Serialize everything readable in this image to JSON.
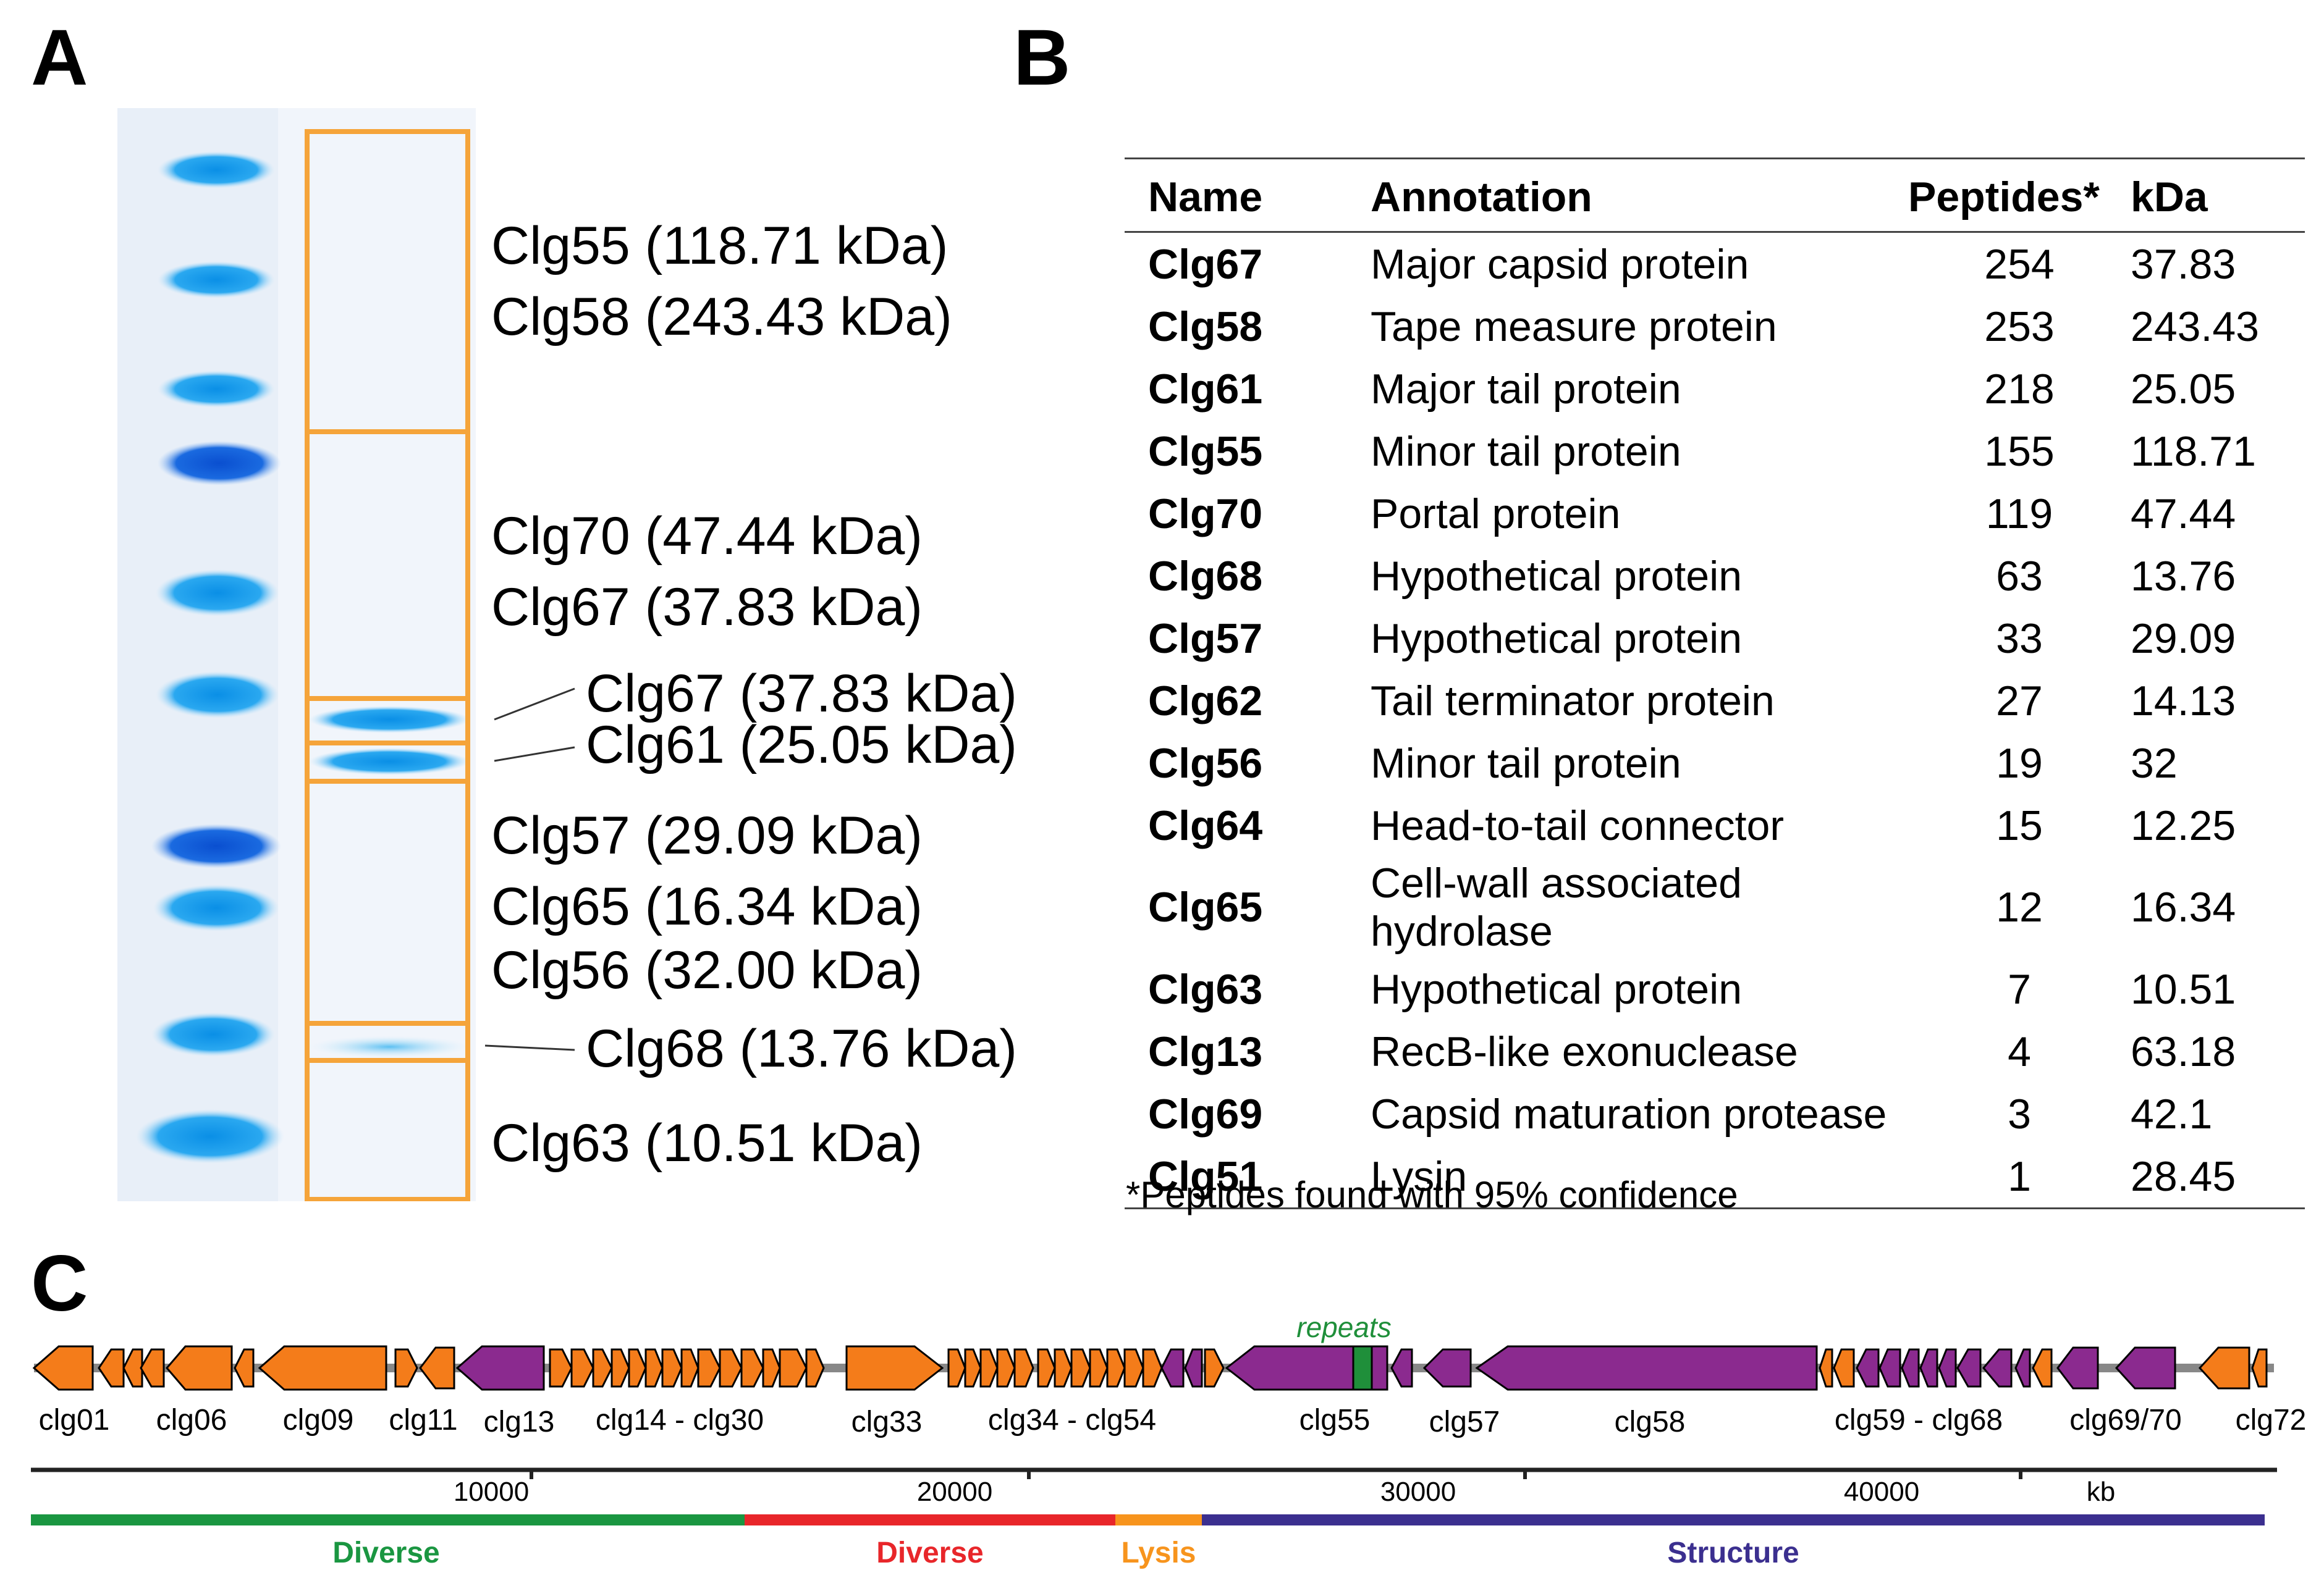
{
  "panels": {
    "a": "A",
    "b": "B",
    "c": "C"
  },
  "gel_labels": [
    "Clg55 (118.71 kDa)",
    "Clg58 (243.43 kDa)",
    "Clg70 (47.44 kDa)",
    "Clg67 (37.83 kDa)",
    "Clg67 (37.83 kDa)",
    "Clg61 (25.05 kDa)",
    "Clg57 (29.09 kDa)",
    "Clg65 (16.34 kDa)",
    "Clg56 (32.00 kDa)",
    "Clg68 (13.76 kDa)",
    "Clg63 (10.51 kDa)"
  ],
  "table": {
    "headers": [
      "Name",
      "Annotation",
      "Peptides*",
      "kDa"
    ],
    "rows": [
      [
        "Clg67",
        "Major capsid protein",
        "254",
        "37.83"
      ],
      [
        "Clg58",
        "Tape measure protein",
        "253",
        "243.43"
      ],
      [
        "Clg61",
        "Major tail protein",
        "218",
        "25.05"
      ],
      [
        "Clg55",
        "Minor tail protein",
        "155",
        "118.71"
      ],
      [
        "Clg70",
        "Portal protein",
        "119",
        "47.44"
      ],
      [
        "Clg68",
        "Hypothetical protein",
        "63",
        "13.76"
      ],
      [
        "Clg57",
        "Hypothetical protein",
        "33",
        "29.09"
      ],
      [
        "Clg62",
        "Tail terminator protein",
        "27",
        "14.13"
      ],
      [
        "Clg56",
        "Minor tail protein",
        "19",
        "32"
      ],
      [
        "Clg64",
        "Head-to-tail connector",
        "15",
        "12.25"
      ],
      [
        "Clg65",
        "Cell-wall associated hydrolase",
        "12",
        "16.34"
      ],
      [
        "Clg63",
        "Hypothetical protein",
        "7",
        "10.51"
      ],
      [
        "Clg13",
        "RecB-like exonuclease",
        "4",
        "63.18"
      ],
      [
        "Clg69",
        "Capsid maturation protease",
        "3",
        "42.1"
      ],
      [
        "Clg51",
        "Lysin",
        "1",
        "28.45"
      ]
    ],
    "footnote": "*Peptides found with 95% confidence"
  },
  "genome": {
    "repeats_label": "repeats",
    "gene_labels": [
      "clg01",
      "clg06",
      "clg09",
      "clg11",
      "clg13",
      "clg14 - clg30",
      "clg33",
      "clg34 - clg54",
      "clg55",
      "clg57",
      "clg58",
      "clg59 - clg68",
      "clg69/70",
      "clg72"
    ],
    "ticks": [
      "10000",
      "20000",
      "30000",
      "40000"
    ],
    "unit": "kb",
    "regions": [
      {
        "label": "Diverse",
        "color": "#1a9641"
      },
      {
        "label": "Diverse",
        "color": "#e8262a"
      },
      {
        "label": "Lysis",
        "color": "#f7941d"
      },
      {
        "label": "Structure",
        "color": "#3b2f8f"
      }
    ],
    "colors": {
      "orange": "#f47c1a",
      "purple": "#8b2a8f",
      "green": "#1f8f3a",
      "axis": "#222222"
    }
  }
}
